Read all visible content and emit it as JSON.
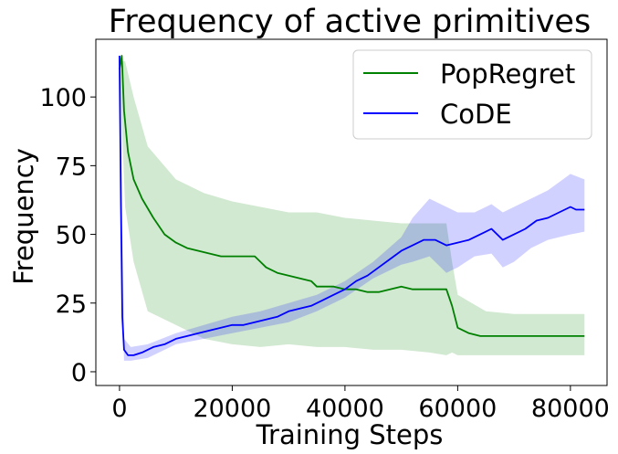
{
  "chart_data": {
    "type": "line",
    "title": "Frequency of active primitives",
    "xlabel": "Training Steps",
    "ylabel": "Frequency",
    "xlim": [
      -4200,
      86500
    ],
    "ylim": [
      -5,
      121
    ],
    "xticks": [
      0,
      20000,
      40000,
      60000,
      80000
    ],
    "yticks": [
      0,
      25,
      50,
      75,
      100
    ],
    "xtick_labels": [
      "0",
      "20000",
      "40000",
      "60000",
      "80000"
    ],
    "ytick_labels": [
      "0",
      "25",
      "50",
      "75",
      "100"
    ],
    "legend_position": "top-right",
    "grid": false,
    "series": [
      {
        "name": "PopRegret",
        "color": "#008000",
        "band_color": "#008000",
        "band_opacity": 0.18,
        "points": [
          [
            0,
            110
          ],
          [
            400,
            115
          ],
          [
            800,
            95
          ],
          [
            1500,
            80
          ],
          [
            2500,
            70
          ],
          [
            4000,
            63
          ],
          [
            6000,
            56
          ],
          [
            8000,
            50
          ],
          [
            10000,
            47
          ],
          [
            12000,
            45
          ],
          [
            14000,
            44
          ],
          [
            16000,
            43
          ],
          [
            18000,
            42
          ],
          [
            20000,
            42
          ],
          [
            22000,
            42
          ],
          [
            24000,
            42
          ],
          [
            25000,
            40
          ],
          [
            26000,
            38
          ],
          [
            28000,
            36
          ],
          [
            30000,
            35
          ],
          [
            32000,
            34
          ],
          [
            34000,
            33
          ],
          [
            35000,
            31
          ],
          [
            36000,
            31
          ],
          [
            38000,
            31
          ],
          [
            40000,
            30
          ],
          [
            42000,
            30
          ],
          [
            44000,
            29
          ],
          [
            46000,
            29
          ],
          [
            48000,
            30
          ],
          [
            50000,
            31
          ],
          [
            52000,
            30
          ],
          [
            54000,
            30
          ],
          [
            56000,
            30
          ],
          [
            58000,
            30
          ],
          [
            58500,
            27
          ],
          [
            59000,
            24
          ],
          [
            60000,
            16
          ],
          [
            62000,
            14
          ],
          [
            64000,
            13
          ],
          [
            66000,
            13
          ],
          [
            68000,
            13
          ],
          [
            70000,
            13
          ],
          [
            72000,
            13
          ],
          [
            75000,
            13
          ],
          [
            78000,
            13
          ],
          [
            80000,
            13
          ],
          [
            82500,
            13
          ]
        ],
        "band": [
          [
            0,
            113,
            113
          ],
          [
            1000,
            113,
            60
          ],
          [
            2500,
            100,
            40
          ],
          [
            5000,
            82,
            22
          ],
          [
            10000,
            70,
            17
          ],
          [
            15000,
            65,
            12
          ],
          [
            20000,
            62,
            10
          ],
          [
            25000,
            60,
            9
          ],
          [
            30000,
            58,
            10
          ],
          [
            35000,
            58,
            9
          ],
          [
            40000,
            56,
            9
          ],
          [
            45000,
            55,
            8
          ],
          [
            50000,
            54,
            8
          ],
          [
            55000,
            54,
            7
          ],
          [
            58000,
            54,
            6
          ],
          [
            59000,
            40,
            7
          ],
          [
            60000,
            28,
            6
          ],
          [
            65000,
            22,
            6
          ],
          [
            70000,
            21,
            6
          ],
          [
            75000,
            21,
            6
          ],
          [
            82500,
            21,
            6
          ]
        ]
      },
      {
        "name": "CoDE",
        "color": "#0000ff",
        "band_color": "#0000ff",
        "band_opacity": 0.18,
        "points": [
          [
            0,
            115
          ],
          [
            250,
            60
          ],
          [
            500,
            20
          ],
          [
            800,
            8
          ],
          [
            1500,
            6
          ],
          [
            2500,
            6
          ],
          [
            4000,
            7
          ],
          [
            6000,
            9
          ],
          [
            8000,
            10
          ],
          [
            10000,
            12
          ],
          [
            12000,
            13
          ],
          [
            14000,
            14
          ],
          [
            16000,
            15
          ],
          [
            18000,
            16
          ],
          [
            20000,
            17
          ],
          [
            22000,
            17
          ],
          [
            24000,
            18
          ],
          [
            26000,
            19
          ],
          [
            28000,
            20
          ],
          [
            30000,
            22
          ],
          [
            32000,
            23
          ],
          [
            34000,
            24
          ],
          [
            36000,
            26
          ],
          [
            38000,
            28
          ],
          [
            40000,
            30
          ],
          [
            42000,
            33
          ],
          [
            44000,
            35
          ],
          [
            46000,
            38
          ],
          [
            48000,
            41
          ],
          [
            50000,
            44
          ],
          [
            52000,
            46
          ],
          [
            54000,
            48
          ],
          [
            56000,
            48
          ],
          [
            58000,
            46
          ],
          [
            60000,
            47
          ],
          [
            62000,
            48
          ],
          [
            64000,
            50
          ],
          [
            66000,
            52
          ],
          [
            68000,
            48
          ],
          [
            70000,
            50
          ],
          [
            72000,
            52
          ],
          [
            74000,
            55
          ],
          [
            76000,
            56
          ],
          [
            78000,
            58
          ],
          [
            80000,
            60
          ],
          [
            81000,
            59
          ],
          [
            82500,
            59
          ]
        ],
        "band": [
          [
            0,
            115,
            115
          ],
          [
            300,
            80,
            35
          ],
          [
            800,
            12,
            4
          ],
          [
            2000,
            9,
            4
          ],
          [
            5000,
            10,
            5
          ],
          [
            10000,
            14,
            10
          ],
          [
            15000,
            17,
            12
          ],
          [
            20000,
            20,
            14
          ],
          [
            25000,
            22,
            16
          ],
          [
            30000,
            25,
            18
          ],
          [
            35000,
            28,
            22
          ],
          [
            40000,
            33,
            27
          ],
          [
            45000,
            40,
            34
          ],
          [
            50000,
            49,
            39
          ],
          [
            52000,
            56,
            40
          ],
          [
            55000,
            63,
            42
          ],
          [
            58000,
            60,
            36
          ],
          [
            60000,
            58,
            38
          ],
          [
            63000,
            58,
            42
          ],
          [
            66000,
            61,
            43
          ],
          [
            68000,
            58,
            38
          ],
          [
            70000,
            60,
            40
          ],
          [
            73000,
            63,
            45
          ],
          [
            76000,
            66,
            48
          ],
          [
            80000,
            72,
            50
          ],
          [
            82500,
            70,
            51
          ]
        ]
      }
    ]
  }
}
